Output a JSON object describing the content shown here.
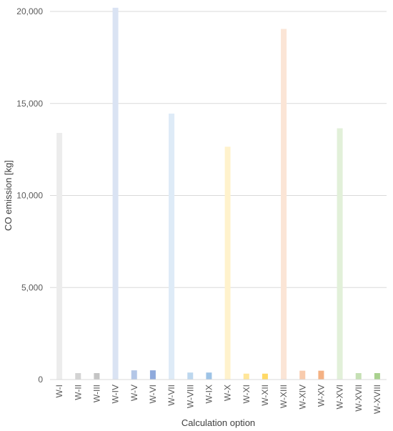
{
  "chart_data": {
    "type": "bar",
    "xlabel": "Calculation option",
    "ylabel": "CO emission [kg]",
    "ylim": [
      0,
      20000
    ],
    "yticks": [
      {
        "value": 0,
        "label": "0"
      },
      {
        "value": 5000,
        "label": "5,000"
      },
      {
        "value": 10000,
        "label": "10,000"
      },
      {
        "value": 15000,
        "label": "15,000"
      },
      {
        "value": 20000,
        "label": "20,000"
      }
    ],
    "grid": true,
    "categories": [
      "W-I",
      "W-II",
      "W-III",
      "W-IV",
      "W-V",
      "W-VI",
      "W-VII",
      "W-VIII",
      "W-IX",
      "W-X",
      "W-XI",
      "W-XII",
      "W-XIII",
      "W-XIV",
      "W-XV",
      "W-XVI",
      "W-XVII",
      "W-XVIII"
    ],
    "values": [
      13400,
      350,
      350,
      20200,
      500,
      500,
      14450,
      380,
      380,
      12650,
      320,
      320,
      19050,
      480,
      480,
      13650,
      350,
      350
    ],
    "colors": [
      "#ececec",
      "#d3d3d3",
      "#c4c4c4",
      "#dae3f3",
      "#b4c7e7",
      "#8faadc",
      "#deebf7",
      "#bdd7ee",
      "#9dc3e6",
      "#fff2cc",
      "#ffe699",
      "#ffd966",
      "#fbe5d6",
      "#f8cbad",
      "#f4b183",
      "#e2f0d9",
      "#c5e0b4",
      "#a9d18e"
    ]
  }
}
